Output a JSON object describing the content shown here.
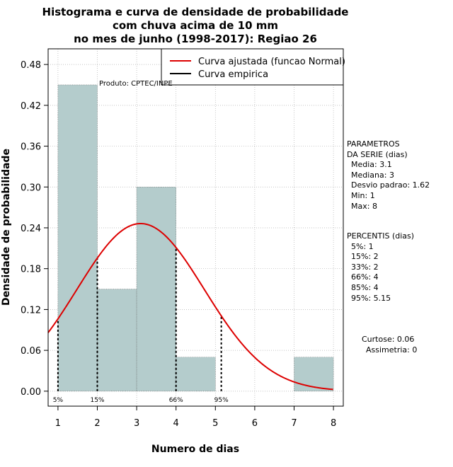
{
  "chart_data": {
    "type": "bar",
    "title": [
      "Histograma e curva de densidade de probabilidade",
      "com chuva acima de 10 mm",
      "no mes de junho (1998-2017): Regiao 26"
    ],
    "xlabel": "Numero de dias",
    "ylabel": "Densidade de probabilidade",
    "xlim": [
      0.75,
      8.25
    ],
    "ylim": [
      -0.022,
      0.503
    ],
    "x_ticks": [
      1,
      2,
      3,
      4,
      5,
      6,
      7,
      8
    ],
    "y_ticks": [
      0.0,
      0.06,
      0.12,
      0.18,
      0.24,
      0.3,
      0.36,
      0.42,
      0.48
    ],
    "y_tick_labels": [
      "0.00",
      "0.06",
      "0.12",
      "0.18",
      "0.24",
      "0.30",
      "0.36",
      "0.42",
      "0.48"
    ],
    "grid": true,
    "bars": [
      {
        "x0": 1,
        "x1": 2,
        "value": 0.45
      },
      {
        "x0": 2,
        "x1": 3,
        "value": 0.15
      },
      {
        "x0": 3,
        "x1": 4,
        "value": 0.3
      },
      {
        "x0": 4,
        "x1": 5,
        "value": 0.05
      },
      {
        "x0": 5,
        "x1": 6,
        "value": 0.0
      },
      {
        "x0": 6,
        "x1": 7,
        "value": 0.0
      },
      {
        "x0": 7,
        "x1": 8,
        "value": 0.05
      }
    ],
    "normal_fit": {
      "mean": 3.1,
      "sd": 1.62
    },
    "legend": {
      "position": "top-right",
      "entries": [
        {
          "label": "Curva ajustada (funcao Normal)",
          "color": "#dd0000"
        },
        {
          "label": "Curva empirica",
          "color": "#000000"
        }
      ]
    },
    "percentile_lines": [
      {
        "label": "5%",
        "x": 1
      },
      {
        "label": "15%",
        "x": 2
      },
      {
        "label": "66%",
        "x": 4
      },
      {
        "label": "95%",
        "x": 5.15
      }
    ],
    "annotation": "Produto: CPTEC/INPE",
    "colors": {
      "bar_fill": "#b4cccc",
      "curve": "#dd0000",
      "grid": "#b0b0b0"
    }
  },
  "side_panel": {
    "params_title": [
      "PARAMETROS",
      "DA SERIE (dias)"
    ],
    "params": [
      "Media: 3.1",
      "Mediana: 3",
      "Desvio padrao: 1.62",
      "Min: 1",
      "Max: 8"
    ],
    "percentis_title": "PERCENTIS (dias)",
    "percentis": [
      "5%: 1",
      "15%: 2",
      "33%: 2",
      "66%: 4",
      "85%: 4",
      "95%: 5.15"
    ],
    "curtose": "Curtose: 0.06",
    "assimetria": "Assimetria: 0"
  }
}
